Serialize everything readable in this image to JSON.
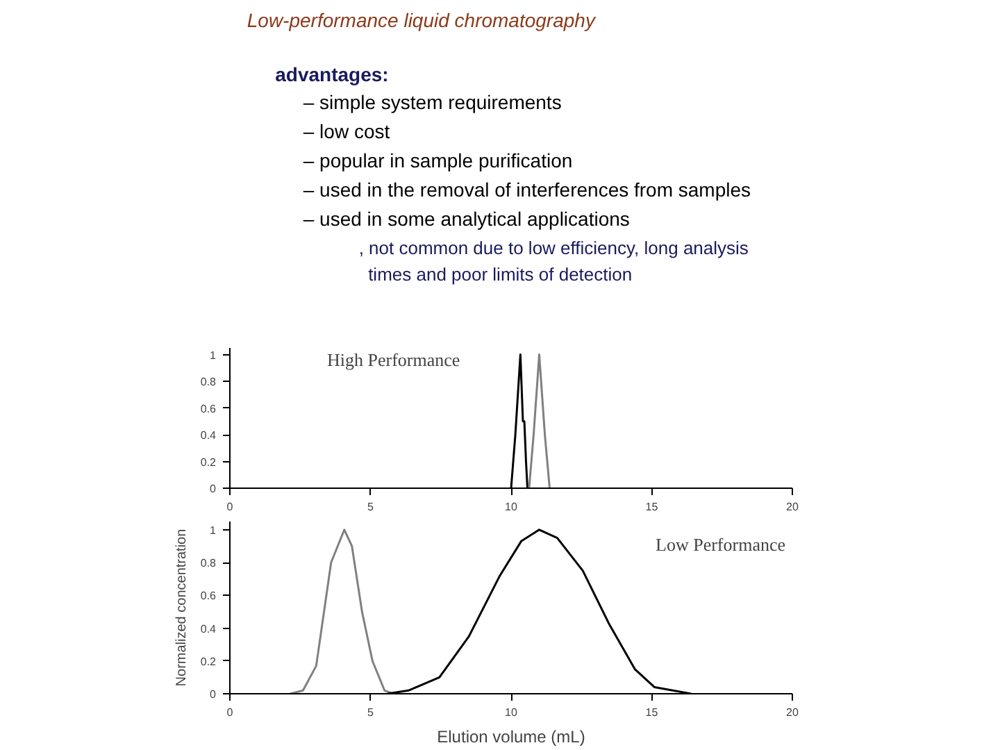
{
  "chart_data": [
    {
      "type": "other",
      "title": "Low-performance liquid chromatography",
      "annotations": [
        "advantages:",
        "– simple system requirements",
        "– low cost",
        "– popular in sample purification",
        "– used in the removal of interferences from samples",
        "– used in some analytical applications",
        ", not common due to low efficiency, long analysis times and poor limits of detection"
      ]
    },
    {
      "type": "line",
      "annotations": [
        "High Performance"
      ],
      "xlim": [
        0,
        20
      ],
      "ylim": [
        0,
        1.05
      ],
      "xticks": [
        0,
        5,
        10,
        15,
        20
      ],
      "yticks": [
        0,
        0.2,
        0.4,
        0.6,
        0.8,
        1
      ],
      "grid": false,
      "marker": "none",
      "series": [
        {
          "color": "#000000",
          "x": [
            10.0,
            10.15,
            10.33,
            10.42,
            10.47,
            10.53,
            10.58
          ],
          "values": [
            0,
            0.4,
            1.0,
            0.5,
            0.5,
            0.2,
            0
          ]
        },
        {
          "color": "#808080",
          "x": [
            10.64,
            10.8,
            11.0,
            11.2,
            11.37
          ],
          "values": [
            0,
            0.4,
            1.0,
            0.4,
            0
          ]
        }
      ]
    },
    {
      "type": "line",
      "annotations": [
        "Low Performance"
      ],
      "xlabel": "Elution volume (mL)",
      "ylabel": "Normalized concentration",
      "xlim": [
        0,
        20
      ],
      "ylim": [
        0,
        1.05
      ],
      "xticks": [
        0,
        5,
        10,
        15,
        20
      ],
      "yticks": [
        0,
        0.2,
        0.4,
        0.6,
        0.8,
        1
      ],
      "grid": false,
      "marker": "none",
      "series": [
        {
          "color": "#808080",
          "x": [
            2.15,
            2.6,
            3.07,
            3.6,
            4.07,
            4.34,
            4.7,
            5.07,
            5.5,
            5.8
          ],
          "values": [
            0,
            0.02,
            0.17,
            0.8,
            1.0,
            0.9,
            0.5,
            0.2,
            0.02,
            0
          ]
        },
        {
          "color": "#000000",
          "x": [
            5.6,
            6.35,
            7.45,
            8.5,
            9.6,
            10.36,
            11.0,
            11.64,
            12.55,
            13.47,
            14.4,
            15.1,
            16.4
          ],
          "values": [
            0,
            0.02,
            0.1,
            0.35,
            0.72,
            0.93,
            1.0,
            0.95,
            0.75,
            0.43,
            0.15,
            0.04,
            0
          ]
        }
      ]
    }
  ]
}
